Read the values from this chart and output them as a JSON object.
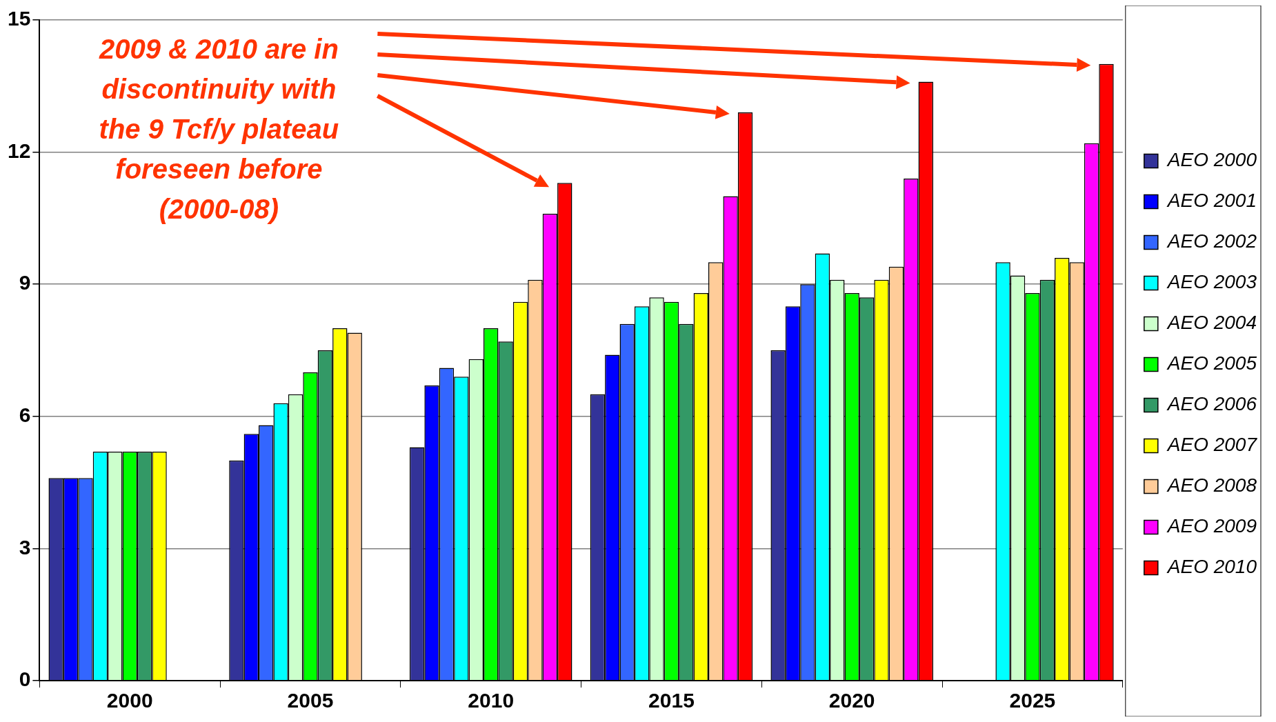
{
  "chart_data": {
    "type": "bar",
    "categories": [
      "2000",
      "2005",
      "2010",
      "2015",
      "2020",
      "2025"
    ],
    "series": [
      {
        "name": "AEO 2000",
        "color": "#333399",
        "values": [
          4.6,
          5.0,
          5.3,
          6.5,
          7.5,
          null
        ]
      },
      {
        "name": "AEO 2001",
        "color": "#0000ff",
        "values": [
          4.6,
          5.6,
          6.7,
          7.4,
          8.5,
          null
        ]
      },
      {
        "name": "AEO 2002",
        "color": "#3366ff",
        "values": [
          4.6,
          5.8,
          7.1,
          8.1,
          9.0,
          null
        ]
      },
      {
        "name": "AEO 2003",
        "color": "#00ffff",
        "values": [
          5.2,
          6.3,
          6.9,
          8.5,
          9.7,
          9.5
        ]
      },
      {
        "name": "AEO 2004",
        "color": "#ccffcc",
        "values": [
          5.2,
          6.5,
          7.3,
          8.7,
          9.1,
          9.2
        ]
      },
      {
        "name": "AEO 2005",
        "color": "#00ff00",
        "values": [
          5.2,
          7.0,
          8.0,
          8.6,
          8.8,
          8.8
        ]
      },
      {
        "name": "AEO 2006",
        "color": "#339966",
        "values": [
          5.2,
          7.5,
          7.7,
          8.1,
          8.7,
          9.1
        ]
      },
      {
        "name": "AEO 2007",
        "color": "#ffff00",
        "values": [
          5.2,
          8.0,
          8.6,
          8.8,
          9.1,
          9.6
        ]
      },
      {
        "name": "AEO 2008",
        "color": "#ffcc99",
        "values": [
          null,
          7.9,
          9.1,
          9.5,
          9.4,
          9.5
        ]
      },
      {
        "name": "AEO 2009",
        "color": "#ff00ff",
        "values": [
          null,
          null,
          10.6,
          11.0,
          11.4,
          12.2
        ]
      },
      {
        "name": "AEO 2010",
        "color": "#ff0000",
        "values": [
          null,
          null,
          11.3,
          12.9,
          13.6,
          14.0
        ]
      }
    ],
    "ylim": [
      0,
      15
    ],
    "yticks": [
      0,
      3,
      6,
      9,
      12,
      15
    ],
    "grid": "y",
    "legend": "right",
    "annotations": [
      "2009 & 2010 are in discontinuity with the 9 Tcf/y plateau foreseen before (2000-08)"
    ]
  }
}
